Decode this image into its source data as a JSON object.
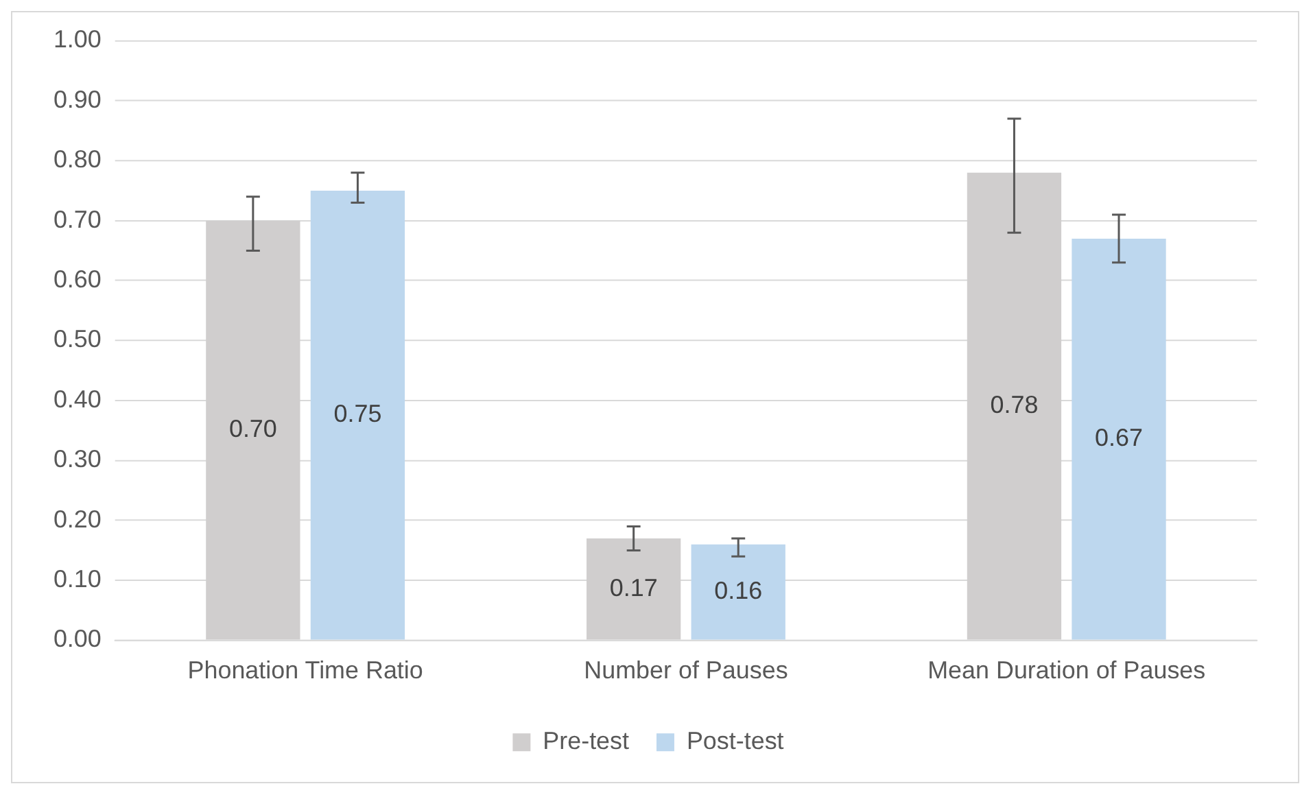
{
  "chart_data": {
    "type": "bar",
    "categories": [
      "Phonation Time Ratio",
      "Number of Pauses",
      "Mean Duration of Pauses"
    ],
    "series": [
      {
        "name": "Pre-test",
        "color": "#d0cece",
        "values": [
          0.7,
          0.17,
          0.78
        ],
        "value_labels": [
          "0.70",
          "0.17",
          "0.78"
        ],
        "errors": [
          [
            0.65,
            0.74
          ],
          [
            0.15,
            0.19
          ],
          [
            0.68,
            0.87
          ]
        ]
      },
      {
        "name": "Post-test",
        "color": "#bdd7ee",
        "values": [
          0.75,
          0.16,
          0.67
        ],
        "value_labels": [
          "0.75",
          "0.16",
          "0.67"
        ],
        "errors": [
          [
            0.73,
            0.78
          ],
          [
            0.14,
            0.17
          ],
          [
            0.63,
            0.71
          ]
        ]
      }
    ],
    "ylim": [
      0,
      1
    ],
    "yticks": [
      {
        "value": 0,
        "label": "0.00"
      },
      {
        "value": 0.1,
        "label": "0.10"
      },
      {
        "value": 0.2,
        "label": "0.20"
      },
      {
        "value": 0.3,
        "label": "0.30"
      },
      {
        "value": 0.4,
        "label": "0.40"
      },
      {
        "value": 0.5,
        "label": "0.50"
      },
      {
        "value": 0.6,
        "label": "0.60"
      },
      {
        "value": 0.7,
        "label": "0.70"
      },
      {
        "value": 0.8,
        "label": "0.80"
      },
      {
        "value": 0.9,
        "label": "0.90"
      },
      {
        "value": 1,
        "label": "1.00"
      }
    ],
    "grid": "y",
    "legend": "bottom"
  }
}
